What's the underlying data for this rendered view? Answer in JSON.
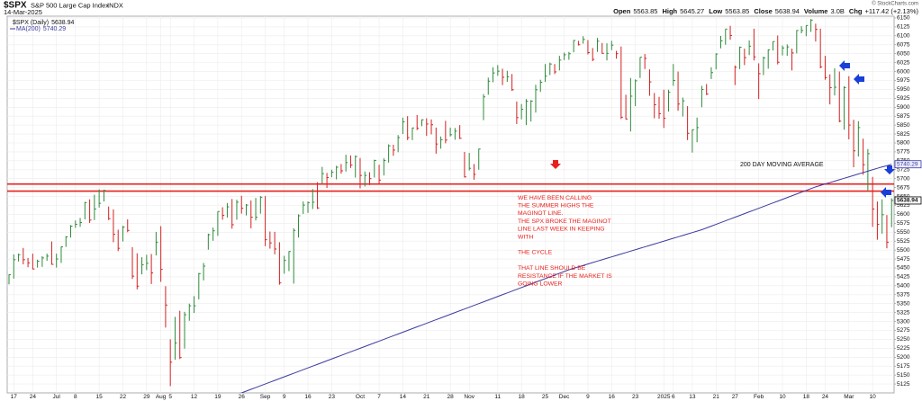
{
  "header": {
    "symbol": "$SPX",
    "name": "S&P 500 Large Cap Index",
    "exchange": "INDX",
    "date": "14-Mar-2025",
    "copyright": "© StockCharts.com",
    "quote_labels": [
      "Open",
      "High",
      "Low",
      "Close",
      "Volume",
      "Chg"
    ],
    "open": 5563.85,
    "volume": "3.0B",
    "chg": "+117.42 (+2.13%)"
  },
  "chart_data": {
    "type": "ohlc",
    "price_name": "$SPX (Daily)",
    "up_color": "#2e8b3a",
    "down_color": "#d42020",
    "categories": [
      null,
      "17",
      null,
      null,
      null,
      "24",
      null,
      null,
      null,
      null,
      "Jul",
      null,
      null,
      null,
      "8",
      null,
      null,
      null,
      null,
      "15",
      null,
      null,
      null,
      null,
      "22",
      null,
      null,
      null,
      null,
      "29",
      null,
      null,
      "Aug",
      null,
      "5",
      null,
      null,
      null,
      null,
      "12",
      null,
      null,
      null,
      null,
      "19",
      null,
      null,
      null,
      null,
      "26",
      null,
      null,
      null,
      null,
      "Sep",
      null,
      null,
      null,
      "9",
      null,
      null,
      null,
      null,
      "16",
      null,
      null,
      null,
      null,
      "23",
      null,
      null,
      null,
      null,
      null,
      "Oct",
      null,
      null,
      null,
      "7",
      null,
      null,
      null,
      null,
      "14",
      null,
      null,
      null,
      null,
      "21",
      null,
      null,
      null,
      null,
      "28",
      null,
      null,
      null,
      "Nov",
      null,
      null,
      null,
      null,
      null,
      "11",
      null,
      null,
      null,
      null,
      "18",
      null,
      null,
      null,
      null,
      "25",
      null,
      null,
      null,
      "Dec",
      null,
      null,
      null,
      null,
      "9",
      null,
      null,
      null,
      null,
      "16",
      null,
      null,
      null,
      null,
      "23",
      null,
      null,
      null,
      null,
      null,
      "2025",
      null,
      "6",
      null,
      null,
      null,
      "13",
      null,
      null,
      null,
      null,
      "21",
      null,
      null,
      null,
      "27",
      null,
      null,
      null,
      null,
      "Feb",
      null,
      null,
      null,
      null,
      "10",
      null,
      null,
      null,
      null,
      "18",
      null,
      null,
      null,
      "24",
      null,
      null,
      null,
      null,
      "Mar",
      null,
      null,
      null,
      null,
      "10",
      null,
      null,
      null,
      null
    ],
    "high": [
      5432,
      5488,
      5490,
      5506,
      5478,
      5490,
      5473,
      5483,
      5490,
      5524,
      5490,
      5510,
      5539,
      5570,
      5583,
      5590,
      5635,
      5642,
      5655,
      5670,
      5669,
      5622,
      5614,
      5557,
      5568,
      5586,
      5508,
      5491,
      5480,
      5487,
      5489,
      5551,
      5567,
      5399,
      5250,
      5313,
      5330,
      5327,
      5350,
      5371,
      5436,
      5464,
      5546,
      5563,
      5608,
      5620,
      5632,
      5643,
      5641,
      5652,
      5629,
      5639,
      5646,
      5651,
      5651,
      5552,
      5551,
      5522,
      5484,
      5497,
      5561,
      5600,
      5636,
      5636,
      5671,
      5690,
      5733,
      5716,
      5725,
      5736,
      5741,
      5767,
      5765,
      5765,
      5758,
      5720,
      5718,
      5753,
      5739,
      5757,
      5796,
      5795,
      5822,
      5871,
      5875,
      5843,
      5878,
      5866,
      5869,
      5866,
      5843,
      5818,
      5862,
      5843,
      5842,
      5850,
      5775,
      5772,
      5741,
      5784,
      5937,
      5983,
      6012,
      6018,
      6008,
      6002,
      5993,
      5916,
      5909,
      5923,
      5920,
      5963,
      5977,
      6021,
      6025,
      6021,
      6044,
      6053,
      6055,
      6088,
      6086,
      6099,
      6088,
      6066,
      6094,
      6080,
      6079,
      6086,
      6058,
      6070,
      5935,
      5982,
      5978,
      6040,
      6049,
      6006,
      5940,
      5929,
      5949,
      5949,
      6021,
      6000,
      5927,
      5903,
      5838,
      5871,
      5960,
      5965,
      6012,
      6051,
      6100,
      6119,
      6128,
      6017,
      6070,
      6064,
      6087,
      6120,
      6023,
      6042,
      6062,
      6084,
      6101,
      6073,
      6076,
      6064,
      6116,
      6127,
      6129,
      6147,
      6134,
      6120,
      6044,
      5992,
      6009,
      6000,
      5959,
      5987,
      5865,
      5861,
      5812,
      5783,
      5705,
      5636,
      5642,
      5598,
      5645.27
    ],
    "low": [
      5404,
      5420,
      5468,
      5460,
      5452,
      5446,
      5451,
      5453,
      5470,
      5459,
      5451,
      5464,
      5509,
      5535,
      5562,
      5565,
      5586,
      5576,
      5584,
      5619,
      5636,
      5584,
      5522,
      5497,
      5524,
      5550,
      5419,
      5390,
      5432,
      5444,
      5405,
      5485,
      5411,
      5283,
      5119,
      5193,
      5195,
      5224,
      5302,
      5324,
      5362,
      5415,
      5501,
      5526,
      5540,
      5585,
      5591,
      5560,
      5585,
      5602,
      5597,
      5561,
      5583,
      5602,
      5511,
      5504,
      5488,
      5403,
      5434,
      5441,
      5406,
      5535,
      5601,
      5604,
      5615,
      5615,
      5686,
      5674,
      5704,
      5698,
      5714,
      5720,
      5730,
      5703,
      5673,
      5678,
      5682,
      5703,
      5686,
      5709,
      5745,
      5764,
      5774,
      5825,
      5808,
      5808,
      5836,
      5847,
      5820,
      5824,
      5770,
      5784,
      5799,
      5818,
      5809,
      5811,
      5703,
      5723,
      5697,
      5725,
      5864,
      5935,
      5970,
      5988,
      5962,
      5971,
      5946,
      5853,
      5866,
      5850,
      5860,
      5885,
      5943,
      5971,
      5990,
      5993,
      6003,
      6032,
      6033,
      6054,
      6073,
      6078,
      6048,
      6029,
      6055,
      6050,
      6031,
      6060,
      6036,
      5867,
      5866,
      5832,
      5903,
      5982,
      6007,
      5932,
      5869,
      5868,
      5842,
      5888,
      5960,
      5890,
      5874,
      5808,
      5773,
      5802,
      5900,
      5934,
      5979,
      6006,
      6065,
      6075,
      6089,
      5962,
      6007,
      6018,
      6046,
      6031,
      5923,
      5990,
      6008,
      6059,
      6020,
      6045,
      6044,
      6003,
      6051,
      6107,
      6099,
      6111,
      6084,
      6009,
      5977,
      5908,
      5933,
      5858,
      5837,
      5810,
      5732,
      5762,
      5711,
      5667,
      5565,
      5529,
      5546,
      5505,
      5563.85
    ],
    "close": [
      5431,
      5473,
      5487,
      5473,
      5464,
      5447,
      5469,
      5478,
      5483,
      5460,
      5475,
      5509,
      5537,
      5567,
      5572,
      5577,
      5633,
      5584,
      5615,
      5631,
      5667,
      5588,
      5544,
      5505,
      5564,
      5555,
      5427,
      5399,
      5459,
      5463,
      5436,
      5522,
      5446,
      5346,
      5186,
      5240,
      5199,
      5319,
      5344,
      5344,
      5434,
      5455,
      5543,
      5554,
      5608,
      5597,
      5621,
      5571,
      5634,
      5617,
      5626,
      5592,
      5592,
      5648,
      5529,
      5520,
      5503,
      5408,
      5471,
      5496,
      5555,
      5596,
      5626,
      5633,
      5634,
      5618,
      5714,
      5703,
      5718,
      5732,
      5722,
      5745,
      5738,
      5762,
      5709,
      5709,
      5700,
      5751,
      5696,
      5751,
      5792,
      5780,
      5815,
      5859,
      5815,
      5842,
      5841,
      5865,
      5853,
      5851,
      5797,
      5809,
      5808,
      5823,
      5833,
      5813,
      5705,
      5729,
      5712,
      5783,
      5929,
      5973,
      5996,
      6001,
      5984,
      5985,
      5949,
      5871,
      5894,
      5917,
      5917,
      5949,
      5970,
      5987,
      6021,
      5999,
      6032,
      6047,
      6050,
      6087,
      6075,
      6090,
      6053,
      6034,
      6085,
      6051,
      6051,
      6074,
      6050,
      5872,
      5867,
      5931,
      5974,
      6040,
      6037,
      5971,
      5907,
      5882,
      5869,
      5942,
      5975,
      5909,
      5918,
      5827,
      5837,
      5843,
      5950,
      5937,
      5997,
      6049,
      6086,
      6119,
      6101,
      6012,
      6068,
      6039,
      6071,
      6041,
      5994,
      6038,
      6061,
      6084,
      6026,
      6066,
      6069,
      6052,
      6115,
      6115,
      6129,
      6144,
      6118,
      6013,
      5983,
      5955,
      5956,
      5861,
      5955,
      5850,
      5778,
      5843,
      5739,
      5770,
      5615,
      5572,
      5599,
      5522,
      5638.94
    ],
    "ma": {
      "name": "MA(200)",
      "color": "#3a3aa0",
      "values": [
        null,
        null,
        null,
        null,
        null,
        null,
        null,
        null,
        null,
        null,
        null,
        null,
        null,
        null,
        null,
        null,
        null,
        null,
        null,
        null,
        null,
        null,
        null,
        null,
        null,
        null,
        null,
        null,
        null,
        null,
        null,
        null,
        null,
        null,
        null,
        null,
        null,
        null,
        null,
        null,
        null,
        null,
        null,
        null,
        null,
        null,
        null,
        null,
        5095,
        5100,
        5105,
        5110,
        5115,
        5120,
        5125,
        5130,
        5135,
        5140,
        5145,
        5150,
        5155,
        5160,
        5165,
        5170,
        5175,
        5180,
        5185,
        5190,
        5195,
        5200,
        5205,
        5210,
        5215,
        5220,
        5225,
        5230,
        5235,
        5240,
        5245,
        5250,
        5255,
        5260,
        5265,
        5270,
        5275,
        5280,
        5285,
        5290,
        5295,
        5300,
        5305,
        5310,
        5315,
        5320,
        5325,
        5330,
        5335,
        5340,
        5345,
        5350,
        5355,
        5360,
        5365,
        5370,
        5375,
        5380,
        5385,
        5390,
        5395,
        5400,
        5405,
        5410,
        5415,
        5420,
        5425,
        5430,
        5435,
        5440,
        5445,
        5449,
        5453,
        5457,
        5461,
        5465,
        5469,
        5473,
        5477,
        5481,
        5485,
        5489,
        5493,
        5497,
        5501,
        5505,
        5509,
        5513,
        5517,
        5521,
        5525,
        5529,
        5533,
        5537,
        5541,
        5545,
        5549,
        5553,
        5557,
        5562,
        5567,
        5572,
        5577,
        5582,
        5587,
        5592,
        5597,
        5602,
        5607,
        5612,
        5617,
        5622,
        5627,
        5632,
        5637,
        5642,
        5647,
        5652,
        5657,
        5662,
        5667,
        5672,
        5677,
        5681,
        5685,
        5689,
        5693,
        5697,
        5701,
        5705,
        5709,
        5713,
        5717,
        5721,
        5725,
        5729,
        5733,
        5736,
        5740.29
      ]
    },
    "ylim": [
      5100,
      6155
    ],
    "yticks": [
      5125,
      5150,
      5175,
      5200,
      5225,
      5250,
      5275,
      5300,
      5325,
      5350,
      5375,
      5400,
      5425,
      5450,
      5475,
      5500,
      5525,
      5550,
      5575,
      5600,
      5625,
      5650,
      5675,
      5700,
      5725,
      5750,
      5775,
      5800,
      5825,
      5850,
      5875,
      5900,
      5925,
      5950,
      5975,
      6000,
      6025,
      6050,
      6075,
      6100,
      6125,
      6150
    ],
    "grid": true,
    "hlines": {
      "color": "#e8201c",
      "values": [
        5685,
        5665
      ]
    },
    "ma_note": "200 DAY MOVING AVERAGE",
    "annotation": {
      "color": "#e8201c",
      "lines": [
        "WE HAVE BEEN CALLING",
        "THE SUMMER HIGHS THE",
        "MAGINOT LINE.",
        "THE SPX BROKE THE MAGINOT",
        "LINE LAST WEEK IN KEEPING",
        "WITH",
        "THE CYCLE",
        "THAT LINE SHOULD BE",
        "RESISTANCE IF THE MARKET IS",
        "GOING LOWER"
      ]
    }
  }
}
